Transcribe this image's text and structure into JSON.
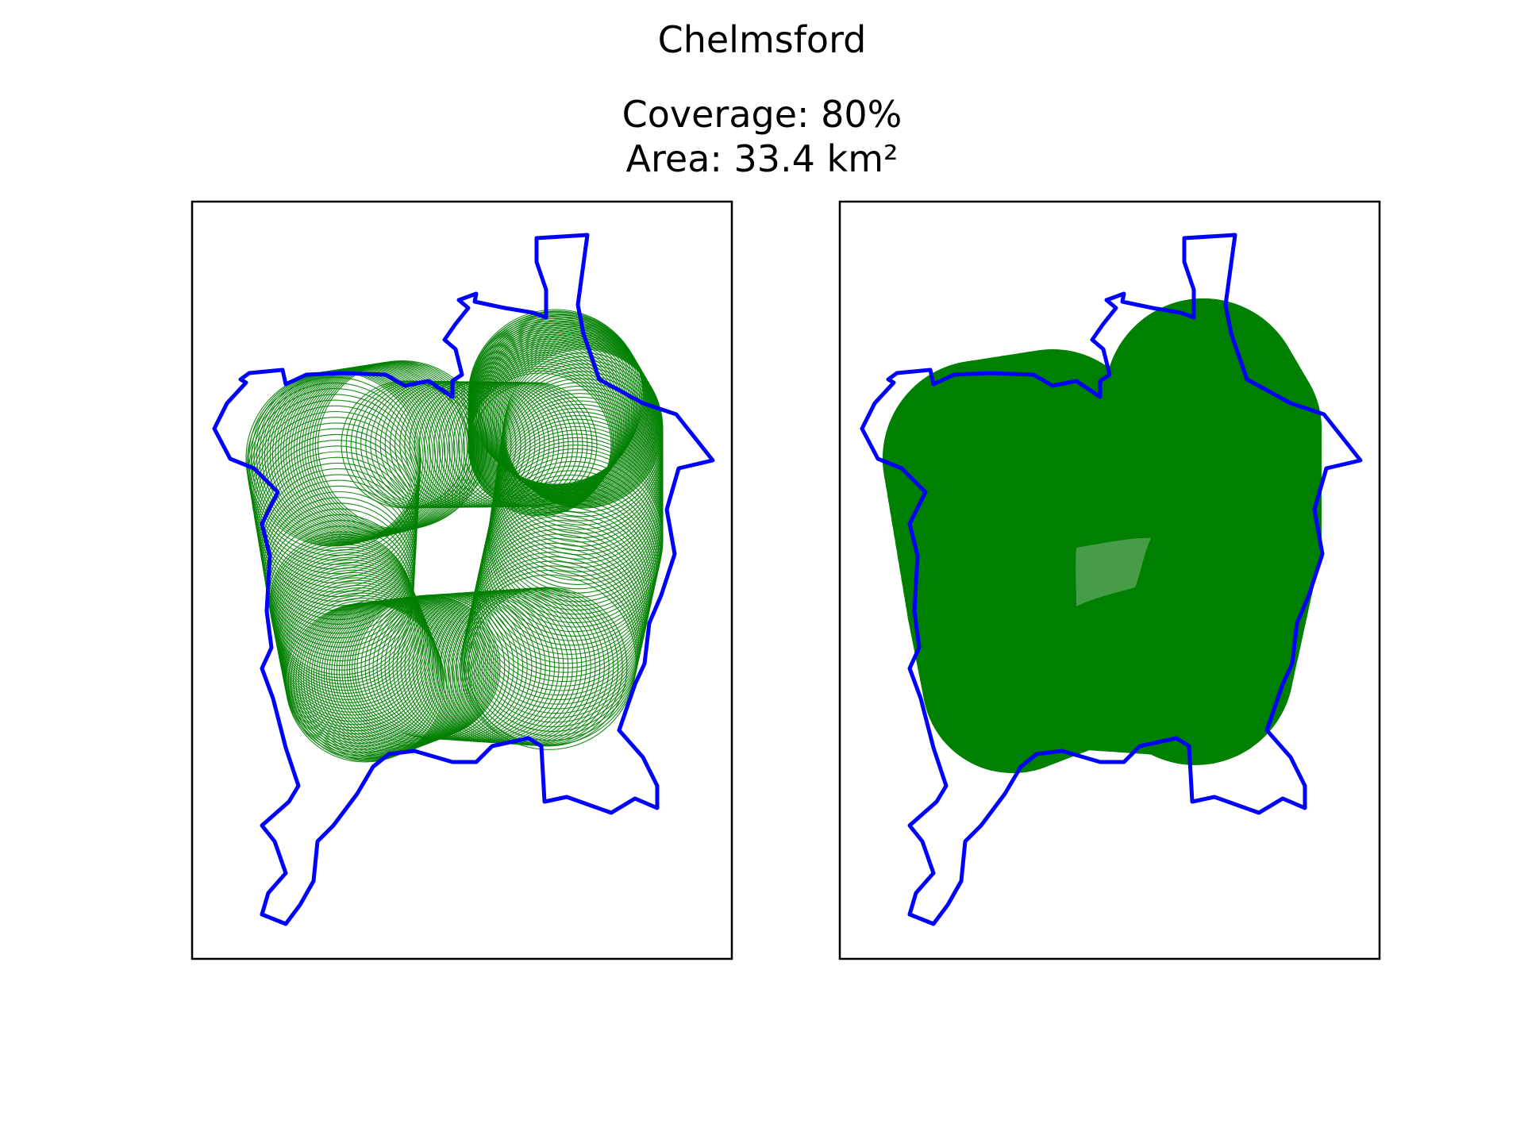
{
  "figure": {
    "title": "Chelmsford",
    "coverage_text": "Coverage: 80%",
    "area_text": "Area: 33.4 km²"
  },
  "colors": {
    "boundary": "#0000ff",
    "coverage": "#008000",
    "frame": "#000000",
    "background": "#ffffff"
  },
  "panels": [
    {
      "name": "left-map-panel",
      "coverage_style": "circle-outlines"
    },
    {
      "name": "right-map-panel",
      "coverage_style": "filled-union"
    }
  ]
}
